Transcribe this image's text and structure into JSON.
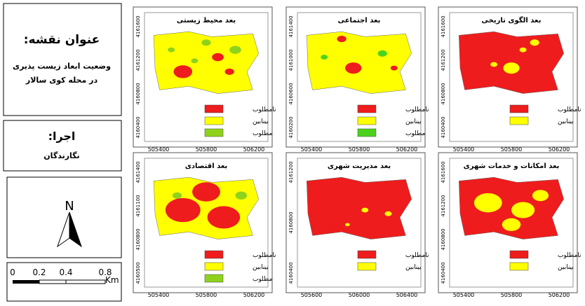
{
  "sidebar": {
    "title_label": "عنوان نقشه:",
    "title_line1": "وضعیت ابعاد زیست پذیری",
    "title_line2": "در محله کوی سالار",
    "credit_label": "اجرا:",
    "credit": "نگارندگان",
    "north": "N",
    "scale_ticks": [
      "0",
      "0.2",
      "0.4",
      "0.8"
    ],
    "scale_unit": "Km"
  },
  "maps": [
    {
      "title": "بعد محیط زیستی",
      "xticks": [
        505400,
        505800,
        506200
      ],
      "yticks": [
        4161600,
        4161200,
        4160800,
        4160400
      ],
      "legend": [
        {
          "label": "نامطلوب",
          "color": "#ee1c1c"
        },
        {
          "label": "بینابین",
          "color": "#ffff00"
        },
        {
          "label": "مطلوب",
          "color": "#8fd21c"
        }
      ]
    },
    {
      "title": "بعد اجتماعی",
      "xticks": [
        505400,
        505800,
        506200
      ],
      "yticks": [
        4161400,
        4161000,
        4160600,
        4160200
      ],
      "legend": [
        {
          "label": "نامطلوب",
          "color": "#ee1c1c"
        },
        {
          "label": "بینابین",
          "color": "#ffff00"
        },
        {
          "label": "مطلوب",
          "color": "#4cd21c"
        }
      ]
    },
    {
      "title": "بعد الگوی تاریخی",
      "xticks": [
        505400,
        505800,
        506200
      ],
      "yticks": [
        4161600,
        4161200,
        4160800,
        4160400
      ],
      "legend": [
        {
          "label": "نامطلوب",
          "color": "#ee1c1c"
        },
        {
          "label": "بینابین",
          "color": "#ffff00"
        }
      ]
    },
    {
      "title": "بعد اقتصادی",
      "xticks": [
        505400,
        505800,
        506200
      ],
      "yticks": [
        4161400,
        4161100,
        4160800,
        4160500
      ],
      "legend": [
        {
          "label": "نامطلوب",
          "color": "#ee1c1c"
        },
        {
          "label": "بینابین",
          "color": "#ffff00"
        },
        {
          "label": "مطلوب",
          "color": "#8fd21c"
        }
      ]
    },
    {
      "title": "بعد مدیریت شهری",
      "xticks": [
        505600,
        506000,
        506400
      ],
      "yticks": [
        4161200,
        4160800,
        4160400
      ],
      "legend": [
        {
          "label": "نامطلوب",
          "color": "#ee1c1c"
        },
        {
          "label": "بینابین",
          "color": "#ffff00"
        }
      ]
    },
    {
      "title": "بعد امکانات و خدمات شهری",
      "xticks": [
        505400,
        505800,
        506200
      ],
      "yticks": [
        4161600,
        4161200,
        4160800,
        4160400
      ],
      "legend": [
        {
          "label": "نامطلوب",
          "color": "#ee1c1c"
        },
        {
          "label": "بینابین",
          "color": "#ffff00"
        }
      ]
    }
  ]
}
